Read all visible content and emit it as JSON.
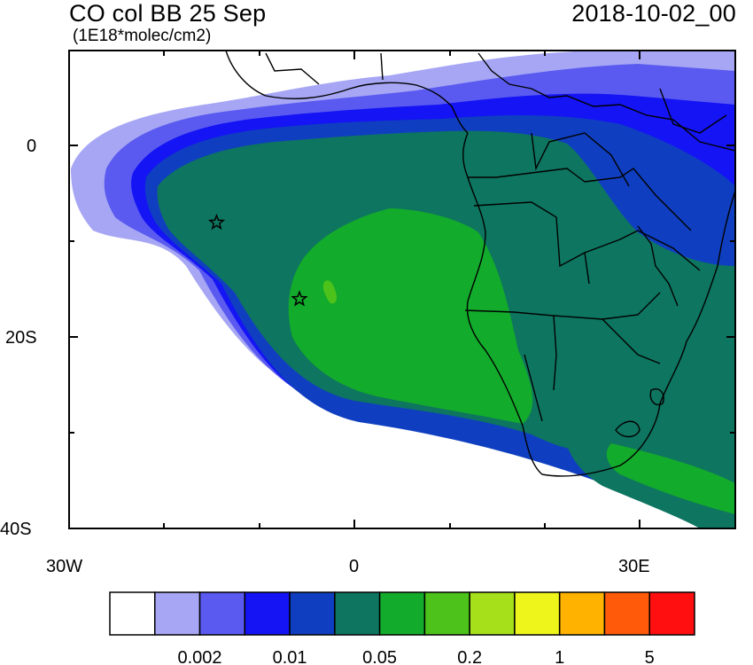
{
  "header": {
    "title": "CO col BB 25 Sep",
    "datetime": "2018-10-02_00",
    "units": "(1E18*molec/cm2)"
  },
  "axes": {
    "lon_labels": [
      "30W",
      "0",
      "30E"
    ],
    "lat_labels": [
      "0",
      "20S",
      "40S"
    ]
  },
  "colorbar": {
    "colors": [
      "#ffffff",
      "#a6a6f5",
      "#5a5af0",
      "#1414f5",
      "#0f3fc0",
      "#0e7560",
      "#13ab2b",
      "#4cc21a",
      "#a6e01a",
      "#eef51a",
      "#ffb300",
      "#ff5a0a",
      "#ff0f0f"
    ],
    "labels": [
      "0.002",
      "0.01",
      "0.05",
      "0.2",
      "1",
      "5"
    ]
  },
  "markers": [
    {
      "name": "star-marker-1",
      "lon": -14.5,
      "lat": -8
    },
    {
      "name": "star-marker-2",
      "lon": -5.8,
      "lat": -16
    }
  ]
}
